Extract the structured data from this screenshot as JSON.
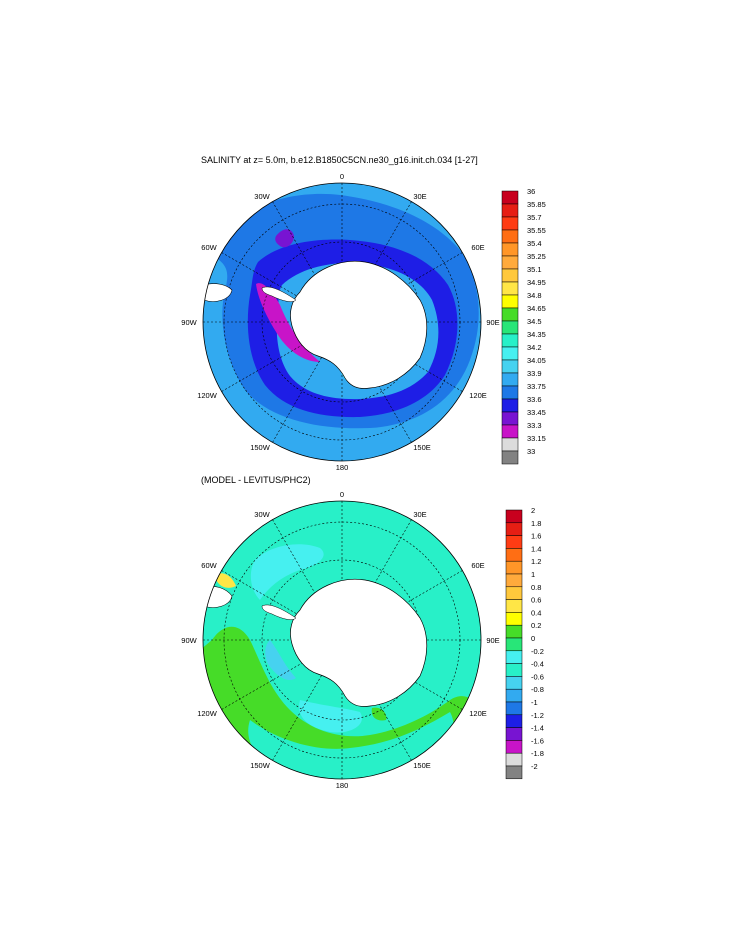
{
  "panels": [
    {
      "id": "salinity",
      "title": "SALINITY at z=   5.0m, b.e12.B1850C5CN.ne30_g16.init.ch.034 [1-27]",
      "lon_labels": [
        "0",
        "30E",
        "60E",
        "90E",
        "120E",
        "150E",
        "180",
        "150W",
        "120W",
        "90W",
        "60W",
        "30W"
      ],
      "colorbar": {
        "labels": [
          "36",
          "35.85",
          "35.7",
          "35.55",
          "35.4",
          "35.25",
          "35.1",
          "34.95",
          "34.8",
          "34.65",
          "34.5",
          "34.35",
          "34.2",
          "34.05",
          "33.9",
          "33.75",
          "33.6",
          "33.45",
          "33.3",
          "33.15",
          "33"
        ],
        "colors": [
          "#c8001e",
          "#e61e14",
          "#ff3c14",
          "#ff6e14",
          "#ff9628",
          "#ffaa3c",
          "#ffc83c",
          "#ffe646",
          "#ffff00",
          "#46dc28",
          "#28e678",
          "#28f0c8",
          "#46f0f0",
          "#46d2f0",
          "#32aaf0",
          "#1e78e6",
          "#1e1ee6",
          "#7814d2",
          "#c814c8",
          "#dcdcdc",
          "#828282"
        ]
      },
      "colors": {
        "ocean": "#32aaf0",
        "ring_outer": "#1e78e6",
        "ring_mid": "#1e1ee6",
        "fresh": "#c814c8",
        "shelf": "#46d2f0",
        "land": "#ffffff"
      }
    },
    {
      "id": "difference",
      "title": "(MODEL - LEVITUS/PHC2)",
      "lon_labels": [
        "0",
        "30E",
        "60E",
        "90E",
        "120E",
        "150E",
        "180",
        "150W",
        "120W",
        "90W",
        "60W",
        "30W"
      ],
      "colorbar": {
        "labels": [
          "2",
          "1.8",
          "1.6",
          "1.4",
          "1.2",
          "1",
          "0.8",
          "0.6",
          "0.4",
          "0.2",
          "0",
          "-0.2",
          "-0.4",
          "-0.6",
          "-0.8",
          "-1",
          "-1.2",
          "-1.4",
          "-1.6",
          "-1.8",
          "-2"
        ],
        "colors": [
          "#c8001e",
          "#e61e14",
          "#ff3c14",
          "#ff6e14",
          "#ff9628",
          "#ffaa3c",
          "#ffc83c",
          "#ffe646",
          "#ffff00",
          "#46dc28",
          "#28e678",
          "#46f0f0",
          "#28f0c8",
          "#46d2f0",
          "#32aaf0",
          "#1e78e6",
          "#1e1ee6",
          "#7814d2",
          "#c814c8",
          "#dcdcdc",
          "#828282"
        ]
      },
      "colors": {
        "ocean": "#28f0c8",
        "band_green": "#46dc28",
        "shelf": "#46f0f0",
        "land": "#ffffff"
      }
    }
  ]
}
